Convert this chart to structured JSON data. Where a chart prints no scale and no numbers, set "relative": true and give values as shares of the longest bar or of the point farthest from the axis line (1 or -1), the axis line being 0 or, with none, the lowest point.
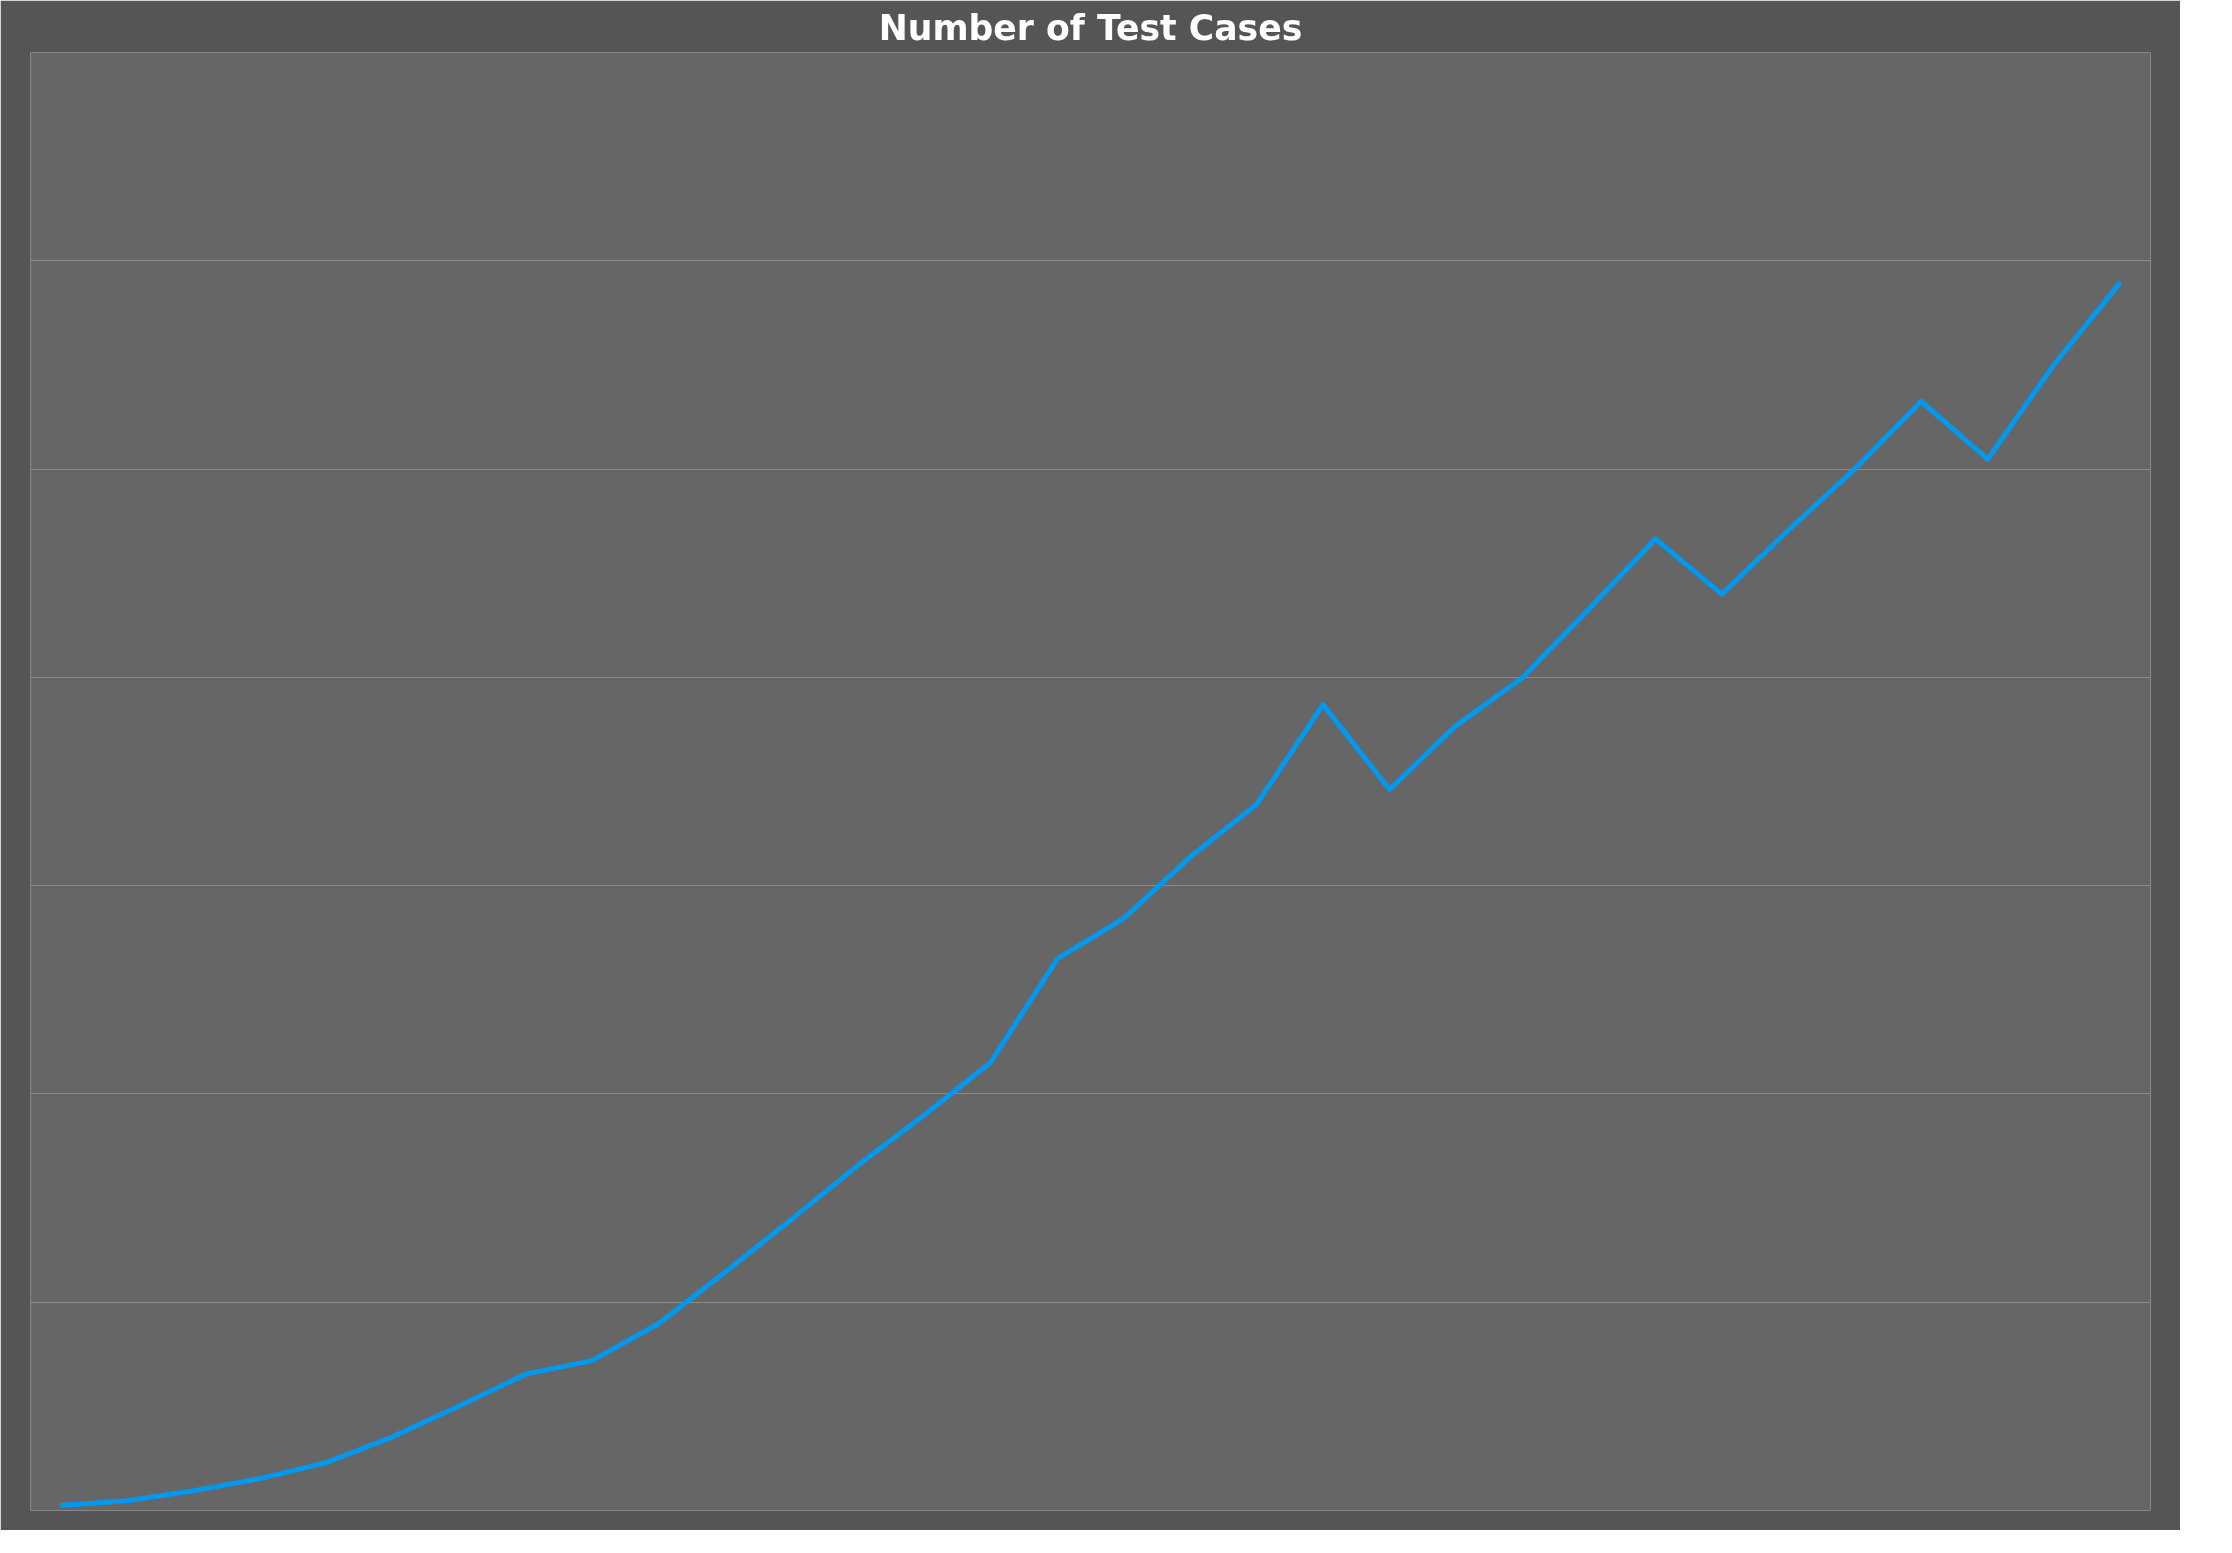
{
  "chart_data": {
    "type": "line",
    "title": "Number of Test Cases",
    "relative": true,
    "grid": "y",
    "marker": "none",
    "line_style": "solid",
    "categories": [
      null,
      null,
      null,
      null,
      null,
      null,
      null,
      null,
      null,
      null,
      null,
      null,
      null,
      null,
      null,
      null,
      null,
      null,
      null,
      null,
      null,
      null,
      null,
      null,
      null,
      null,
      null,
      null,
      null,
      null,
      null,
      null
    ],
    "series": [
      {
        "color": "#0099f0",
        "values": [
          0.004,
          0.008,
          0.016,
          0.026,
          0.039,
          0.06,
          0.085,
          0.111,
          0.122,
          0.152,
          0.194,
          0.237,
          0.281,
          0.322,
          0.365,
          0.449,
          0.482,
          0.532,
          0.575,
          0.656,
          0.587,
          0.639,
          0.678,
          0.734,
          0.791,
          0.746,
          0.798,
          0.848,
          0.903,
          0.856,
          0.933,
          1.0
        ]
      }
    ]
  }
}
